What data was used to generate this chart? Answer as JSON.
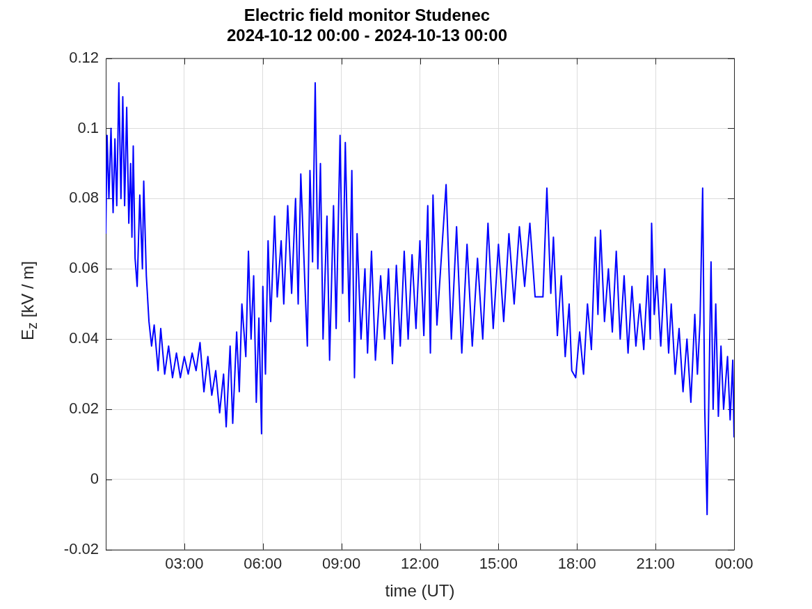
{
  "chart_data": {
    "type": "line",
    "title": "Electric field monitor Studenec\n2024-10-12 00:00 - 2024-10-13 00:00",
    "xlabel": "time (UT)",
    "ylabel": "E$_{z}$ [kV / m]",
    "xlim": [
      0,
      24
    ],
    "xticks": [
      {
        "value": 3,
        "label": "03:00"
      },
      {
        "value": 6,
        "label": "06:00"
      },
      {
        "value": 9,
        "label": "09:00"
      },
      {
        "value": 12,
        "label": "12:00"
      },
      {
        "value": 15,
        "label": "15:00"
      },
      {
        "value": 18,
        "label": "18:00"
      },
      {
        "value": 21,
        "label": "21:00"
      },
      {
        "value": 24,
        "label": "00:00"
      }
    ],
    "ylim": [
      -0.02,
      0.12
    ],
    "yticks": [
      -0.02,
      0,
      0.02,
      0.04,
      0.06,
      0.08,
      0.1,
      0.12
    ],
    "grid": true,
    "legend": false,
    "marker": "none",
    "line_style": "solid",
    "series": [
      {
        "color": "#0000ff",
        "x": [
          0,
          0.05,
          0.12,
          0.2,
          0.28,
          0.35,
          0.42,
          0.5,
          0.58,
          0.65,
          0.72,
          0.8,
          0.88,
          0.95,
          1.0,
          1.05,
          1.12,
          1.2,
          1.3,
          1.4,
          1.45,
          1.55,
          1.65,
          1.75,
          1.85,
          2.0,
          2.1,
          2.25,
          2.4,
          2.55,
          2.7,
          2.85,
          3.0,
          3.15,
          3.3,
          3.45,
          3.6,
          3.75,
          3.9,
          4.05,
          4.2,
          4.35,
          4.5,
          4.6,
          4.75,
          4.85,
          5.0,
          5.1,
          5.2,
          5.35,
          5.45,
          5.55,
          5.65,
          5.75,
          5.85,
          5.95,
          6.0,
          6.1,
          6.2,
          6.3,
          6.45,
          6.55,
          6.7,
          6.8,
          6.95,
          7.1,
          7.25,
          7.35,
          7.45,
          7.6,
          7.7,
          7.8,
          7.9,
          8.0,
          8.1,
          8.2,
          8.3,
          8.45,
          8.55,
          8.7,
          8.8,
          8.95,
          9.05,
          9.15,
          9.3,
          9.4,
          9.5,
          9.6,
          9.75,
          9.9,
          10.0,
          10.15,
          10.3,
          10.5,
          10.65,
          10.8,
          10.95,
          11.1,
          11.25,
          11.4,
          11.55,
          11.7,
          11.85,
          12.0,
          12.15,
          12.3,
          12.4,
          12.5,
          12.65,
          13.0,
          13.2,
          13.4,
          13.6,
          13.8,
          14.0,
          14.2,
          14.4,
          14.6,
          14.8,
          15.0,
          15.2,
          15.4,
          15.6,
          15.8,
          16.0,
          16.2,
          16.4,
          16.7,
          16.85,
          17.0,
          17.1,
          17.25,
          17.4,
          17.55,
          17.7,
          17.8,
          17.95,
          18.1,
          18.25,
          18.4,
          18.55,
          18.7,
          18.8,
          18.9,
          19.05,
          19.2,
          19.35,
          19.5,
          19.65,
          19.8,
          19.95,
          20.1,
          20.25,
          20.4,
          20.55,
          20.7,
          20.8,
          20.85,
          20.95,
          21.05,
          21.2,
          21.35,
          21.5,
          21.6,
          21.75,
          21.9,
          22.05,
          22.2,
          22.35,
          22.5,
          22.6,
          22.7,
          22.8,
          22.88,
          22.97,
          23.05,
          23.12,
          23.2,
          23.3,
          23.4,
          23.5,
          23.6,
          23.75,
          23.85,
          23.95,
          24.0
        ],
        "values": [
          0.07,
          0.098,
          0.08,
          0.1,
          0.076,
          0.097,
          0.078,
          0.113,
          0.08,
          0.109,
          0.078,
          0.106,
          0.073,
          0.09,
          0.069,
          0.095,
          0.063,
          0.055,
          0.081,
          0.06,
          0.085,
          0.058,
          0.045,
          0.038,
          0.044,
          0.031,
          0.043,
          0.03,
          0.038,
          0.029,
          0.036,
          0.029,
          0.035,
          0.03,
          0.036,
          0.031,
          0.039,
          0.025,
          0.035,
          0.024,
          0.031,
          0.019,
          0.03,
          0.015,
          0.038,
          0.016,
          0.042,
          0.025,
          0.05,
          0.035,
          0.065,
          0.04,
          0.058,
          0.022,
          0.046,
          0.013,
          0.055,
          0.03,
          0.068,
          0.045,
          0.075,
          0.052,
          0.068,
          0.05,
          0.078,
          0.053,
          0.08,
          0.05,
          0.087,
          0.057,
          0.038,
          0.088,
          0.062,
          0.113,
          0.06,
          0.09,
          0.04,
          0.075,
          0.034,
          0.078,
          0.043,
          0.098,
          0.053,
          0.096,
          0.045,
          0.088,
          0.029,
          0.07,
          0.04,
          0.06,
          0.036,
          0.065,
          0.034,
          0.058,
          0.04,
          0.06,
          0.033,
          0.061,
          0.038,
          0.065,
          0.04,
          0.064,
          0.043,
          0.068,
          0.041,
          0.078,
          0.036,
          0.081,
          0.044,
          0.084,
          0.04,
          0.072,
          0.036,
          0.067,
          0.038,
          0.063,
          0.04,
          0.073,
          0.043,
          0.067,
          0.045,
          0.07,
          0.05,
          0.072,
          0.055,
          0.073,
          0.052,
          0.052,
          0.083,
          0.053,
          0.069,
          0.041,
          0.058,
          0.035,
          0.05,
          0.031,
          0.029,
          0.042,
          0.03,
          0.05,
          0.037,
          0.069,
          0.047,
          0.071,
          0.045,
          0.06,
          0.042,
          0.065,
          0.04,
          0.058,
          0.036,
          0.055,
          0.038,
          0.05,
          0.037,
          0.058,
          0.04,
          0.073,
          0.047,
          0.058,
          0.038,
          0.06,
          0.036,
          0.05,
          0.03,
          0.043,
          0.025,
          0.04,
          0.022,
          0.047,
          0.03,
          0.045,
          0.083,
          0.02,
          -0.01,
          0.03,
          0.062,
          0.02,
          0.05,
          0.018,
          0.038,
          0.02,
          0.035,
          0.017,
          0.034,
          0.012
        ]
      }
    ]
  }
}
